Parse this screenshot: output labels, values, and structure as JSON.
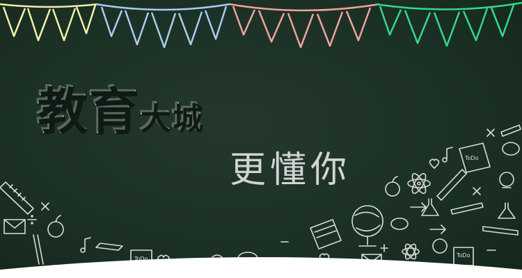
{
  "title": {
    "main": "教育",
    "rest": "大城"
  },
  "subtitle": "更懂你",
  "doodle_labels": [
    "ToDo",
    "ToDo",
    "ToDo"
  ],
  "colors": {
    "board": "#1c3126",
    "bunting_yellow": "#f4efae",
    "bunting_blue": "#a9cdf0",
    "bunting_pink": "#f1a39d",
    "bunting_green": "#34d98a",
    "chalk": "#e9ece9",
    "bottom_band": "#ffffff"
  },
  "icons": [
    "pennant-bunting-icon",
    "ruler-icon",
    "envelope-icon",
    "apple-icon",
    "globe-icon",
    "atom-icon",
    "lightbulb-icon",
    "flask-icon",
    "music-note-icon",
    "heart-icon",
    "pencil-icon",
    "speech-bubble-icon",
    "arrow-icon",
    "plus-icon",
    "divide-icon",
    "times-icon",
    "notepad-icon",
    "rocket-icon"
  ]
}
